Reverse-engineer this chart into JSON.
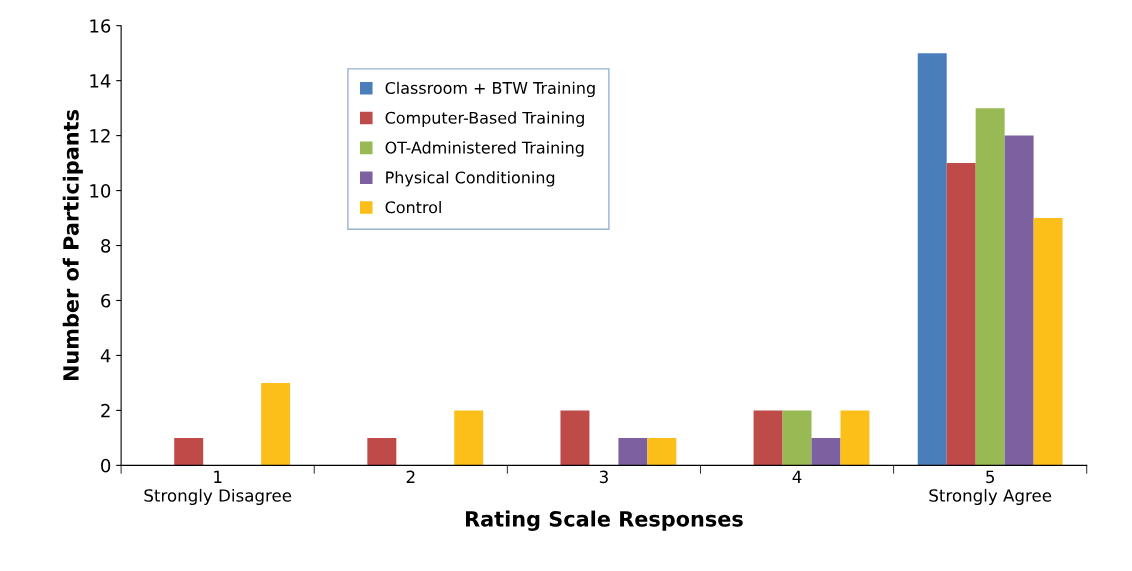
{
  "chart_data": {
    "type": "bar",
    "xlabel": "Rating Scale Responses",
    "ylabel": "Number of Participants",
    "categories": [
      "1\nStrongly Disagree",
      "2",
      "3",
      "4",
      "5\nStrongly Agree"
    ],
    "series": [
      {
        "name": "Classroom + BTW Training",
        "color": "#4a7ebb",
        "values": [
          0,
          0,
          0,
          0,
          15
        ]
      },
      {
        "name": "Computer-Based Training",
        "color": "#be4b48",
        "values": [
          1,
          1,
          2,
          2,
          11
        ]
      },
      {
        "name": "OT-Administered Training",
        "color": "#98b954",
        "values": [
          0,
          0,
          0,
          2,
          13
        ]
      },
      {
        "name": "Physical Conditioning",
        "color": "#7d60a0",
        "values": [
          0,
          0,
          1,
          1,
          12
        ]
      },
      {
        "name": "Control",
        "color": "#fcbf1a",
        "values": [
          3,
          2,
          1,
          2,
          9
        ]
      }
    ],
    "ylim": [
      0,
      16
    ],
    "yticks": [
      0,
      2,
      4,
      6,
      8,
      10,
      12,
      14,
      16
    ],
    "grid": false,
    "legend": "top"
  }
}
